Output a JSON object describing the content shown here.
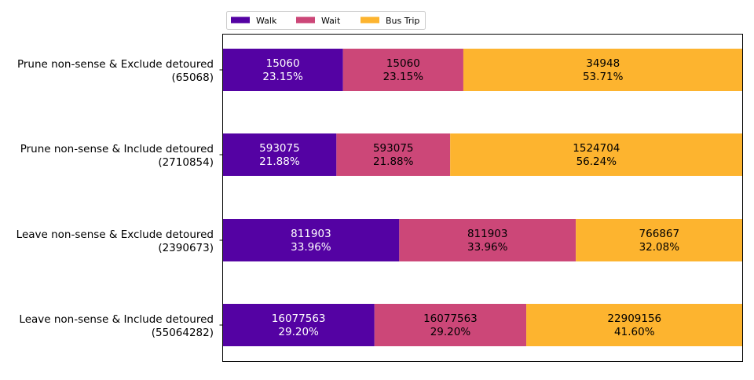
{
  "chart_data": {
    "type": "bar",
    "orientation": "horizontal",
    "stacked": true,
    "normalized": true,
    "categories": [
      {
        "line1": "Prune non-sense & Exclude detoured",
        "line2": "(65068)"
      },
      {
        "line1": "Prune non-sense & Include detoured",
        "line2": "(2710854)"
      },
      {
        "line1": "Leave non-sense & Exclude detoured",
        "line2": "(2390673)"
      },
      {
        "line1": "Leave non-sense & Include detoured",
        "line2": "(55064282)"
      }
    ],
    "series": [
      {
        "name": "Walk",
        "color": "#5402a3",
        "values": [
          15060,
          593075,
          811903,
          16077563
        ],
        "percents": [
          "23.15%",
          "21.88%",
          "33.96%",
          "29.20%"
        ],
        "label_color": "#ffffff"
      },
      {
        "name": "Wait",
        "color": "#cc4778",
        "values": [
          15060,
          593075,
          811903,
          16077563
        ],
        "percents": [
          "23.15%",
          "21.88%",
          "33.96%",
          "29.20%"
        ],
        "label_color": "#000000"
      },
      {
        "name": "Bus Trip",
        "color": "#fdb42f",
        "values": [
          34948,
          1524704,
          766867,
          22909156
        ],
        "percents": [
          "53.71%",
          "56.24%",
          "32.08%",
          "41.60%"
        ],
        "label_color": "#000000"
      }
    ],
    "title": "",
    "xlabel": "",
    "ylabel": "",
    "xlim": [
      0,
      100
    ],
    "grid": false,
    "legend_position": "top-left"
  }
}
